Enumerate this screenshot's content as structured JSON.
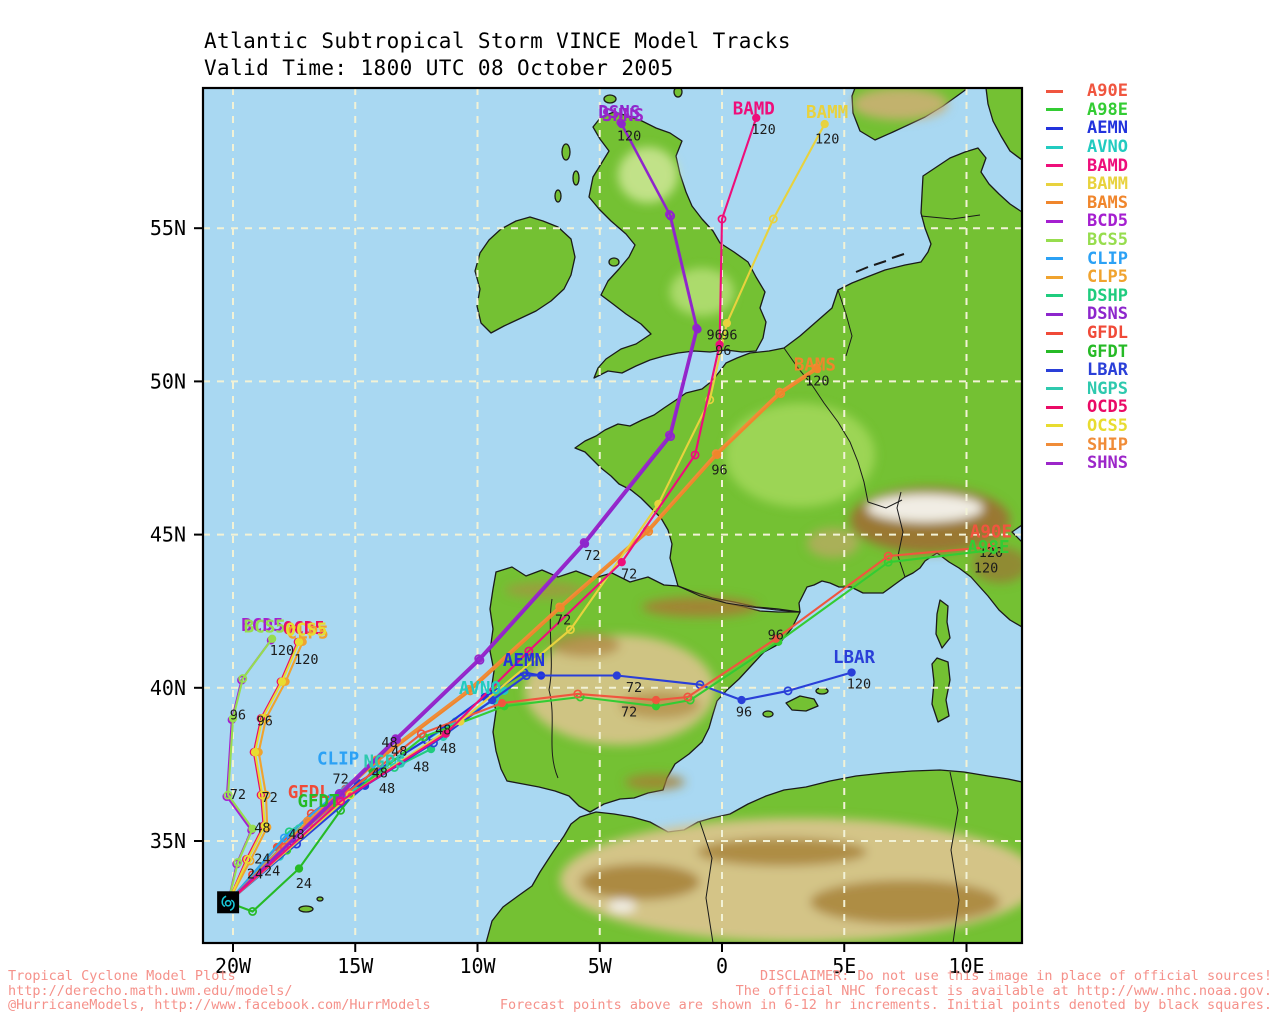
{
  "title": {
    "line1": "Atlantic Subtropical Storm VINCE Model Tracks",
    "line2": "Valid Time: 1800 UTC 08 October 2005"
  },
  "footer": {
    "left": [
      "Tropical Cyclone Model Plots",
      "http://derecho.math.uwm.edu/models/",
      "@HurricaneModels, http://www.facebook.com/HurrModels"
    ],
    "right": [
      "DISCLAIMER: Do not use this image in place of official sources!",
      "The official NHC forecast is available at http://www.nhc.noaa.gov.",
      "Forecast points above are shown in 6-12 hr increments. Initial points denoted by black squares."
    ]
  },
  "map_colors": {
    "ocean": "#a9d8f2",
    "land": "#74c133",
    "grid": "#f2f2d6",
    "frame": "#000000",
    "hour_label": "#1c1c1c",
    "footer_text": "#f5918a"
  },
  "chart_data": {
    "type": "line",
    "title": "Atlantic Subtropical Storm VINCE Model Tracks",
    "subtitle": "Valid Time: 1800 UTC 08 October 2005",
    "grid": true,
    "legend_position": "right",
    "x_axis": {
      "units": "longitude_deg_east",
      "range": [
        -21.2,
        12.3
      ],
      "ticks": [
        {
          "label": "20W",
          "v": -20
        },
        {
          "label": "15W",
          "v": -15
        },
        {
          "label": "10W",
          "v": -10
        },
        {
          "label": "5W",
          "v": -5
        },
        {
          "label": "0",
          "v": 0
        },
        {
          "label": "5E",
          "v": 5
        },
        {
          "label": "10E",
          "v": 10
        }
      ]
    },
    "y_axis": {
      "units": "latitude_deg_north",
      "range": [
        31.7,
        59.6
      ],
      "ticks": [
        {
          "label": "35N",
          "v": 35
        },
        {
          "label": "40N",
          "v": 40
        },
        {
          "label": "45N",
          "v": 45
        },
        {
          "label": "50N",
          "v": 50
        },
        {
          "label": "55N",
          "v": 55
        }
      ]
    },
    "start_point": {
      "lon": -20.2,
      "lat": 33.0,
      "marker": "black-square",
      "note": "initial point"
    },
    "series": [
      {
        "name": "A90E",
        "color": "#f0553f",
        "z": 17,
        "points": [
          [
            -20.2,
            33.0
          ],
          [
            -17.9,
            34.8
          ],
          [
            -15.3,
            36.6
          ],
          [
            -12.3,
            38.5
          ],
          [
            -9.0,
            39.5
          ],
          [
            -5.9,
            39.8
          ],
          [
            -2.7,
            39.6
          ],
          [
            -1.4,
            39.7
          ],
          [
            2.2,
            41.6
          ],
          [
            6.8,
            44.3
          ],
          [
            11.0,
            44.6
          ]
        ]
      },
      {
        "name": "A98E",
        "color": "#33cc33",
        "z": 16,
        "points": [
          [
            -20.2,
            33.0
          ],
          [
            -17.8,
            34.7
          ],
          [
            -15.2,
            36.5
          ],
          [
            -12.2,
            38.4
          ],
          [
            -8.9,
            39.4
          ],
          [
            -5.8,
            39.7
          ],
          [
            -2.7,
            39.4
          ],
          [
            -1.3,
            39.6
          ],
          [
            2.3,
            41.5
          ],
          [
            6.8,
            44.1
          ],
          [
            11.1,
            44.5
          ]
        ]
      },
      {
        "name": "AEMN",
        "color": "#2233dd",
        "z": 12,
        "points": [
          [
            -20.2,
            33.0
          ],
          [
            -17.6,
            35.0
          ],
          [
            -14.9,
            36.9
          ],
          [
            -12.1,
            38.3
          ],
          [
            -9.7,
            39.7
          ],
          [
            -8.1,
            40.5
          ],
          [
            -7.4,
            40.4
          ]
        ]
      },
      {
        "name": "AVNO",
        "color": "#22cbc0",
        "z": 6,
        "points": [
          [
            -20.2,
            33.0
          ],
          [
            -18.1,
            34.5
          ],
          [
            -15.9,
            36.1
          ],
          [
            -13.5,
            37.6
          ],
          [
            -10.9,
            38.9
          ],
          [
            -9.3,
            39.6
          ],
          [
            -8.9,
            39.9
          ]
        ]
      },
      {
        "name": "BAMD",
        "color": "#ee0e7a",
        "z": 21,
        "points": [
          [
            -20.2,
            33.0
          ],
          [
            -15.6,
            36.3
          ],
          [
            -11.3,
            38.5
          ],
          [
            -7.9,
            41.2
          ],
          [
            -4.1,
            44.1
          ],
          [
            -1.1,
            47.6
          ],
          [
            -0.1,
            51.2
          ],
          [
            0.0,
            55.3
          ],
          [
            1.4,
            58.6
          ]
        ]
      },
      {
        "name": "BAMM",
        "color": "#e8d23e",
        "z": 20,
        "points": [
          [
            -20.2,
            33.0
          ],
          [
            -15.2,
            36.5
          ],
          [
            -10.7,
            38.9
          ],
          [
            -6.2,
            41.9
          ],
          [
            -2.6,
            46.0
          ],
          [
            -0.5,
            49.4
          ],
          [
            0.2,
            51.9
          ],
          [
            2.1,
            55.3
          ],
          [
            4.2,
            58.4
          ]
        ]
      },
      {
        "name": "BAMS",
        "color": "#f0862c",
        "z": 15,
        "points": [
          [
            -20.2,
            33.0
          ],
          [
            -16.9,
            35.6
          ],
          [
            -14.1,
            37.6
          ],
          [
            -10.3,
            39.9
          ],
          [
            -6.6,
            42.6
          ],
          [
            -3.0,
            45.1
          ],
          [
            -0.2,
            47.6
          ],
          [
            2.4,
            49.6
          ],
          [
            3.9,
            50.4
          ]
        ]
      },
      {
        "name": "BCD5",
        "color": "#a51fd0",
        "z": 10,
        "points": [
          [
            -20.2,
            33.0
          ],
          [
            -19.85,
            34.25
          ],
          [
            -19.25,
            35.35
          ],
          [
            -20.25,
            36.45
          ],
          [
            -20.05,
            38.95
          ],
          [
            -19.65,
            40.25
          ],
          [
            -18.45,
            41.55
          ]
        ]
      },
      {
        "name": "BCS5",
        "color": "#97dd4e",
        "z": 11,
        "points": [
          [
            -20.2,
            33.0
          ],
          [
            -19.8,
            34.3
          ],
          [
            -19.2,
            35.4
          ],
          [
            -20.2,
            36.5
          ],
          [
            -20.0,
            39.0
          ],
          [
            -19.6,
            40.3
          ],
          [
            -18.4,
            41.6
          ]
        ]
      },
      {
        "name": "CLIP",
        "color": "#2ba1f5",
        "z": 4,
        "points": [
          [
            -20.2,
            33.0
          ],
          [
            -17.9,
            35.1
          ],
          [
            -16.0,
            36.4
          ],
          [
            -14.3,
            37.5
          ]
        ]
      },
      {
        "name": "CLP5",
        "color": "#f0a32e",
        "z": 7,
        "points": [
          [
            -20.2,
            33.0
          ],
          [
            -19.3,
            34.35
          ],
          [
            -18.6,
            35.45
          ],
          [
            -18.65,
            36.5
          ],
          [
            -18.95,
            37.9
          ],
          [
            -18.65,
            39.0
          ],
          [
            -17.85,
            40.2
          ],
          [
            -17.15,
            41.5
          ]
        ]
      },
      {
        "name": "DSHP",
        "color": "#1fcc7e",
        "z": 3,
        "points": [
          [
            -20.2,
            33.0
          ],
          [
            -17.7,
            35.3
          ],
          [
            -15.4,
            36.5
          ],
          [
            -13.4,
            37.4
          ],
          [
            -11.9,
            38.0
          ]
        ]
      },
      {
        "name": "DSNS",
        "color": "#8d26cc",
        "z": 19,
        "points": [
          [
            -20.2,
            33.0
          ],
          [
            -15.6,
            36.5
          ],
          [
            -13.3,
            38.3
          ],
          [
            -9.9,
            40.9
          ],
          [
            -5.6,
            44.7
          ],
          [
            -2.1,
            48.2
          ],
          [
            -1.0,
            51.7
          ],
          [
            -2.1,
            55.4
          ],
          [
            -4.1,
            58.4
          ]
        ]
      },
      {
        "name": "GFDL",
        "color": "#f04a38",
        "z": 1,
        "points": [
          [
            -20.2,
            33.0
          ],
          [
            -19.2,
            33.9
          ],
          [
            -18.2,
            34.8
          ],
          [
            -16.8,
            35.9
          ],
          [
            -15.4,
            36.7
          ]
        ]
      },
      {
        "name": "GFDT",
        "color": "#26ba26",
        "z": 2,
        "points": [
          [
            -20.2,
            33.0
          ],
          [
            -19.2,
            32.7
          ],
          [
            -17.3,
            34.1
          ],
          [
            -15.6,
            36.0
          ],
          [
            -14.3,
            37.3
          ]
        ]
      },
      {
        "name": "LBAR",
        "color": "#2a3fd8",
        "z": 13,
        "points": [
          [
            -20.2,
            33.0
          ],
          [
            -17.4,
            34.9
          ],
          [
            -14.6,
            36.8
          ],
          [
            -11.8,
            38.2
          ],
          [
            -9.4,
            39.6
          ],
          [
            -8.0,
            40.4
          ],
          [
            -4.3,
            40.4
          ],
          [
            -0.9,
            40.1
          ],
          [
            0.8,
            39.6
          ],
          [
            2.7,
            39.9
          ],
          [
            5.3,
            40.5
          ]
        ]
      },
      {
        "name": "NGPS",
        "color": "#2ec9ae",
        "z": 5,
        "points": [
          [
            -20.2,
            33.0
          ],
          [
            -17.3,
            35.4
          ],
          [
            -14.9,
            36.8
          ],
          [
            -13.1,
            37.6
          ],
          [
            -11.4,
            38.4
          ]
        ]
      },
      {
        "name": "OCD5",
        "color": "#ea0a66",
        "z": 8,
        "points": [
          [
            -20.2,
            33.0
          ],
          [
            -19.45,
            34.4
          ],
          [
            -18.75,
            35.5
          ],
          [
            -18.85,
            36.5
          ],
          [
            -19.15,
            37.9
          ],
          [
            -18.85,
            39.0
          ],
          [
            -18.05,
            40.2
          ],
          [
            -17.35,
            41.5
          ]
        ]
      },
      {
        "name": "OCS5",
        "color": "#e8dc30",
        "z": 9,
        "points": [
          [
            -20.2,
            33.0
          ],
          [
            -19.4,
            34.4
          ],
          [
            -18.7,
            35.5
          ],
          [
            -18.8,
            36.5
          ],
          [
            -19.1,
            37.9
          ],
          [
            -18.8,
            39.0
          ],
          [
            -18.0,
            40.2
          ],
          [
            -17.3,
            41.5
          ]
        ]
      },
      {
        "name": "SHIP",
        "color": "#f08c38",
        "z": 14,
        "points": [
          [
            -20.2,
            33.0
          ],
          [
            -16.95,
            35.65
          ],
          [
            -14.15,
            37.65
          ],
          [
            -10.35,
            39.95
          ],
          [
            -6.65,
            42.65
          ],
          [
            -3.05,
            45.15
          ],
          [
            -0.25,
            47.65
          ],
          [
            2.35,
            49.65
          ],
          [
            3.85,
            50.45
          ]
        ]
      },
      {
        "name": "SHNS",
        "color": "#9c26c9",
        "z": 18,
        "points": [
          [
            -20.2,
            33.0
          ],
          [
            -15.65,
            36.55
          ],
          [
            -13.35,
            38.35
          ],
          [
            -9.95,
            40.95
          ],
          [
            -5.65,
            44.75
          ],
          [
            -2.15,
            48.25
          ],
          [
            -1.05,
            51.75
          ],
          [
            -2.15,
            55.45
          ],
          [
            -4.15,
            58.45
          ]
        ]
      }
    ],
    "model_labels": [
      {
        "name": "DSNS",
        "lon": -4.2,
        "lat": 58.8
      },
      {
        "name": "SHNS",
        "lon": -4.05,
        "lat": 58.7
      },
      {
        "name": "BAMD",
        "lon": 1.3,
        "lat": 58.9
      },
      {
        "name": "BAMM",
        "lon": 4.3,
        "lat": 58.8
      },
      {
        "name": "BAMS",
        "lon": 3.8,
        "lat": 50.55
      },
      {
        "name": "BCD5",
        "lon": -18.8,
        "lat": 42.05
      },
      {
        "name": "BCS5",
        "lon": -18.7,
        "lat": 42.0
      },
      {
        "name": "OCD5",
        "lon": -17.1,
        "lat": 41.95
      },
      {
        "name": "CLP5",
        "lon": -16.95,
        "lat": 41.8
      },
      {
        "name": "OCS5",
        "lon": -17.0,
        "lat": 41.9
      },
      {
        "name": "CLIP",
        "lon": -15.7,
        "lat": 37.7
      },
      {
        "name": "NGPS",
        "lon": -13.8,
        "lat": 37.6
      },
      {
        "name": "GFDL",
        "lon": -16.9,
        "lat": 36.6
      },
      {
        "name": "GFDT",
        "lon": -16.5,
        "lat": 36.3
      },
      {
        "name": "AEMN",
        "lon": -8.1,
        "lat": 40.9
      },
      {
        "name": "AVNO",
        "lon": -9.9,
        "lat": 40.0
      },
      {
        "name": "LBAR",
        "lon": 5.4,
        "lat": 41.0
      },
      {
        "name": "A90E",
        "lon": 11.0,
        "lat": 45.1
      },
      {
        "name": "A98E",
        "lon": 10.9,
        "lat": 44.6
      }
    ],
    "hour_labels": [
      {
        "text": "24",
        "lon": -18.8,
        "lat": 34.4
      },
      {
        "text": "24",
        "lon": -19.1,
        "lat": 33.9
      },
      {
        "text": "24",
        "lon": -18.4,
        "lat": 34.0
      },
      {
        "text": "24",
        "lon": -17.1,
        "lat": 33.6
      },
      {
        "text": "48",
        "lon": -18.8,
        "lat": 35.4
      },
      {
        "text": "48",
        "lon": -17.4,
        "lat": 35.2
      },
      {
        "text": "48",
        "lon": -13.6,
        "lat": 38.2
      },
      {
        "text": "48",
        "lon": -13.2,
        "lat": 37.9
      },
      {
        "text": "48",
        "lon": -11.4,
        "lat": 38.6
      },
      {
        "text": "48",
        "lon": -11.2,
        "lat": 38.0
      },
      {
        "text": "48",
        "lon": -12.3,
        "lat": 37.4
      },
      {
        "text": "48",
        "lon": -14.0,
        "lat": 37.2
      },
      {
        "text": "48",
        "lon": -13.7,
        "lat": 36.7
      },
      {
        "text": "72",
        "lon": -19.8,
        "lat": 36.5
      },
      {
        "text": "72",
        "lon": -18.5,
        "lat": 36.4
      },
      {
        "text": "72",
        "lon": -15.6,
        "lat": 37.0
      },
      {
        "text": "72",
        "lon": -5.3,
        "lat": 44.3
      },
      {
        "text": "72",
        "lon": -3.8,
        "lat": 43.7
      },
      {
        "text": "72",
        "lon": -6.5,
        "lat": 42.2
      },
      {
        "text": "72",
        "lon": -3.6,
        "lat": 40.0
      },
      {
        "text": "72",
        "lon": -3.8,
        "lat": 39.2
      },
      {
        "text": "96",
        "lon": -19.8,
        "lat": 39.1
      },
      {
        "text": "96",
        "lon": -18.7,
        "lat": 38.9
      },
      {
        "text": "96",
        "lon": -0.1,
        "lat": 47.1
      },
      {
        "text": "96",
        "lon": -0.3,
        "lat": 51.5
      },
      {
        "text": "96",
        "lon": 0.3,
        "lat": 51.5
      },
      {
        "text": "96",
        "lon": 0.05,
        "lat": 51.0
      },
      {
        "text": "96",
        "lon": 2.2,
        "lat": 41.7
      },
      {
        "text": "96",
        "lon": 0.9,
        "lat": 39.2
      },
      {
        "text": "120",
        "lon": -18.0,
        "lat": 41.2
      },
      {
        "text": "120",
        "lon": -17.0,
        "lat": 40.9
      },
      {
        "text": "120",
        "lon": -3.8,
        "lat": 58.0
      },
      {
        "text": "120",
        "lon": 1.7,
        "lat": 58.2
      },
      {
        "text": "120",
        "lon": 4.3,
        "lat": 57.9
      },
      {
        "text": "120",
        "lon": 3.9,
        "lat": 50.0
      },
      {
        "text": "120",
        "lon": 5.6,
        "lat": 40.1
      },
      {
        "text": "120",
        "lon": 11.0,
        "lat": 44.4
      },
      {
        "text": "120",
        "lon": 10.8,
        "lat": 43.9
      }
    ]
  }
}
